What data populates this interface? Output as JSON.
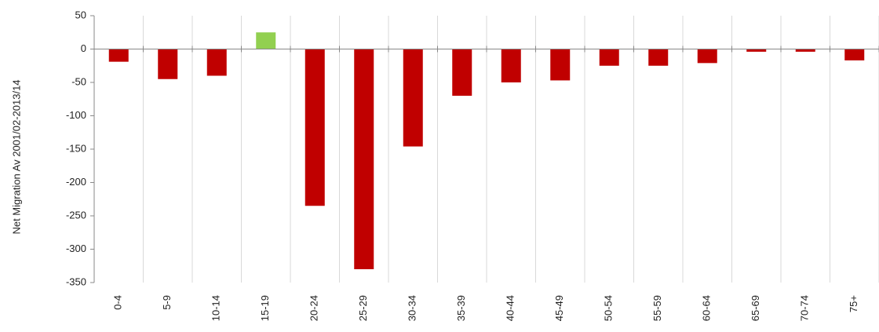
{
  "chart_data": {
    "type": "bar",
    "y_axis_label": "Net Migration Av 2001/02-2013/14",
    "categories": [
      "0-4",
      "5-9",
      "10-14",
      "15-19",
      "20-24",
      "25-29",
      "30-34",
      "35-39",
      "40-44",
      "45-49",
      "50-54",
      "55-59",
      "60-64",
      "65-69",
      "70-74",
      "75+"
    ],
    "values": [
      -19,
      -45,
      -40,
      25,
      -235,
      -330,
      -146,
      -70,
      -50,
      -47,
      -25,
      -25,
      -21,
      -4,
      -4,
      -17
    ],
    "colors": [
      "#c00000",
      "#c00000",
      "#c00000",
      "#92d050",
      "#c00000",
      "#c00000",
      "#c00000",
      "#c00000",
      "#c00000",
      "#c00000",
      "#c00000",
      "#c00000",
      "#c00000",
      "#c00000",
      "#c00000",
      "#c00000"
    ],
    "ylim": [
      -350,
      50
    ],
    "yticks": [
      -350,
      -300,
      -250,
      -200,
      -150,
      -100,
      -50,
      0,
      50
    ],
    "grid": true
  }
}
